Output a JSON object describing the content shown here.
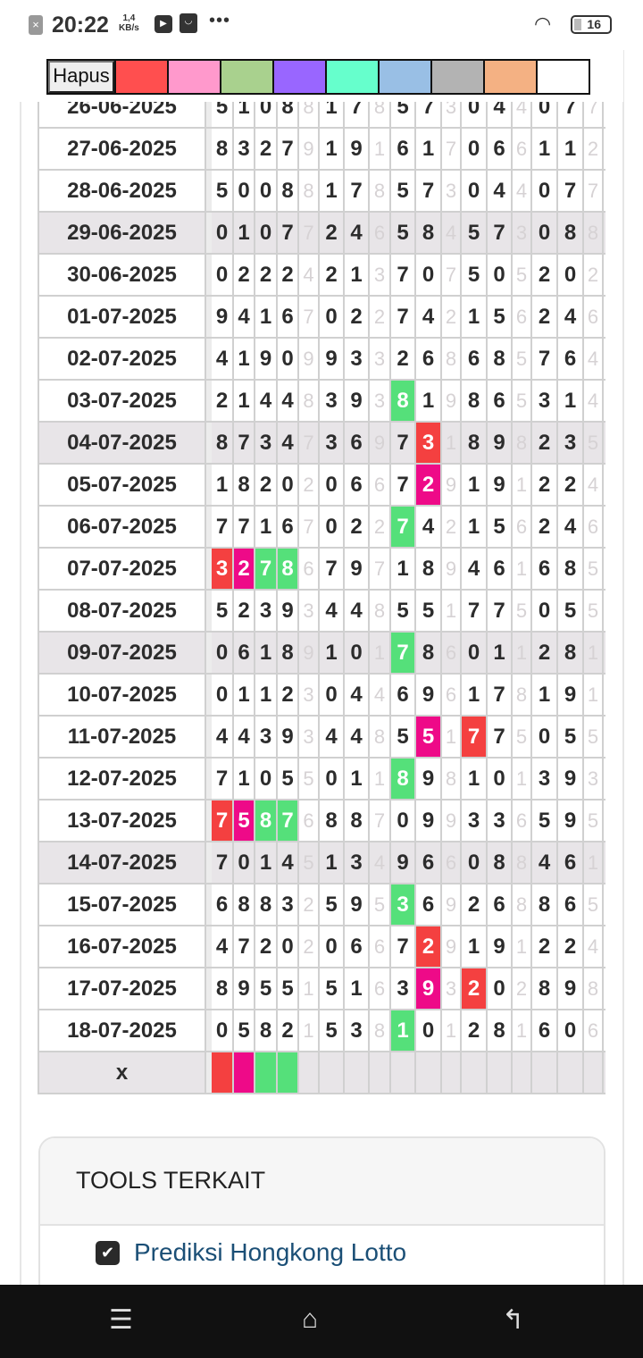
{
  "status": {
    "time": "20:22",
    "speed": "1,4",
    "speed_unit": "KB/s",
    "battery": "16"
  },
  "palette": {
    "clear_label": "Hapus",
    "colors": [
      "#ff4f4f",
      "#ff99cc",
      "#a9d18e",
      "#9966ff",
      "#66ffcc",
      "#99bfe5",
      "#b3b3b3",
      "#f4b183",
      "#ffffff"
    ]
  },
  "highlight_colors": {
    "r": "#f44040",
    "m": "#ee0a88",
    "g": "#55e07a"
  },
  "table": {
    "rows": [
      {
        "date": "26-06-2025",
        "digits": "51088178573044077",
        "hl": {}
      },
      {
        "date": "27-06-2025",
        "digits": "83279191617066112",
        "hl": {}
      },
      {
        "date": "28-06-2025",
        "digits": "50088178573044077",
        "hl": {}
      },
      {
        "date": "29-06-2025",
        "digits": "01077246584573088",
        "hl": {},
        "shade": true
      },
      {
        "date": "30-06-2025",
        "digits": "02224213707505202",
        "hl": {}
      },
      {
        "date": "01-07-2025",
        "digits": "94167022742156246",
        "hl": {}
      },
      {
        "date": "02-07-2025",
        "digits": "41909933268685764",
        "hl": {}
      },
      {
        "date": "03-07-2025",
        "digits": "21448393819865314",
        "hl": {
          "8": "g"
        }
      },
      {
        "date": "04-07-2025",
        "digits": "87347369731898235",
        "hl": {
          "9": "r"
        },
        "shade": true
      },
      {
        "date": "05-07-2025",
        "digits": "18202066729191224",
        "hl": {
          "9": "m"
        }
      },
      {
        "date": "06-07-2025",
        "digits": "77167022742156246",
        "hl": {
          "8": "g"
        }
      },
      {
        "date": "07-07-2025",
        "digits": "32786797189461685",
        "hl": {
          "0": "r",
          "1": "m",
          "2": "g",
          "3": "g"
        }
      },
      {
        "date": "08-07-2025",
        "digits": "52393448551775055",
        "hl": {}
      },
      {
        "date": "09-07-2025",
        "digits": "06189101786011281",
        "hl": {
          "8": "g"
        },
        "shade": true
      },
      {
        "date": "10-07-2025",
        "digits": "01123044696178191",
        "hl": {}
      },
      {
        "date": "11-07-2025",
        "digits": "44393448551775055",
        "hl": {
          "9": "m",
          "11": "r"
        }
      },
      {
        "date": "12-07-2025",
        "digits": "71055011898101393",
        "hl": {
          "8": "g"
        }
      },
      {
        "date": "13-07-2025",
        "digits": "75876887099336595",
        "hl": {
          "0": "r",
          "1": "m",
          "2": "g",
          "3": "g"
        }
      },
      {
        "date": "14-07-2025",
        "digits": "70145134966088461",
        "hl": {},
        "shade": true
      },
      {
        "date": "15-07-2025",
        "digits": "68832595369268865",
        "hl": {
          "8": "g"
        }
      },
      {
        "date": "16-07-2025",
        "digits": "47202066729191224",
        "hl": {
          "9": "r"
        }
      },
      {
        "date": "17-07-2025",
        "digits": "89551516393202898",
        "hl": {
          "9": "m",
          "11": "r"
        }
      },
      {
        "date": "18-07-2025",
        "digits": "05821538101281606",
        "hl": {
          "8": "g"
        }
      },
      {
        "date": "x",
        "digits": "",
        "hl": {
          "0": "r",
          "1": "m",
          "2": "g",
          "3": "g"
        },
        "shade": true
      }
    ]
  },
  "tools": {
    "title": "TOOLS TERKAIT",
    "items": [
      {
        "label": "Prediksi Hongkong Lotto"
      }
    ]
  }
}
